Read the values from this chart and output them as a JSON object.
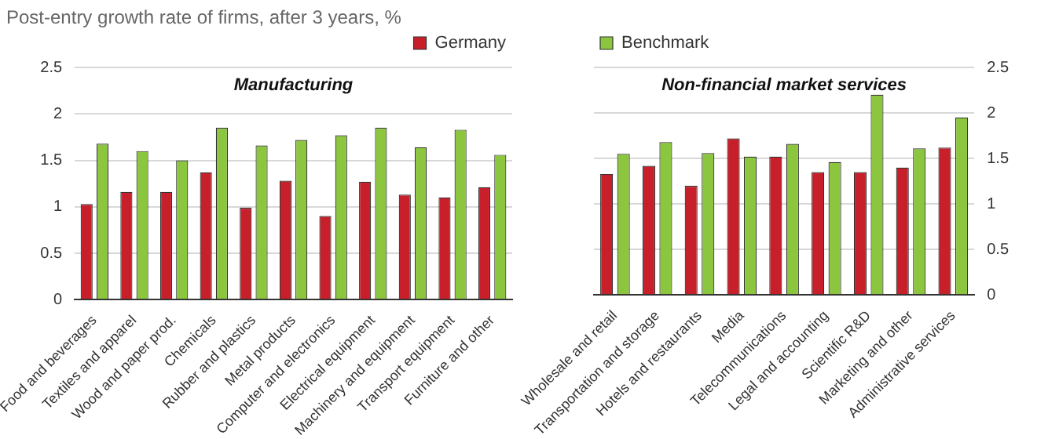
{
  "chart_data": [
    {
      "type": "bar",
      "title": "Post-entry growth rate of firms, after 3 years, %",
      "subtitle": "Manufacturing",
      "categories": [
        "Food and beverages",
        "Textiles and apparel",
        "Wood and paper prod.",
        "Chemicals",
        "Rubber and plastics",
        "Metal products",
        "Computer and electronics",
        "Electrical equipment",
        "Machinery and equipment",
        "Transport equipment",
        "Furniture and other"
      ],
      "series": [
        {
          "name": "Germany",
          "color": "#c8202b",
          "values": [
            1.03,
            1.16,
            1.16,
            1.37,
            0.99,
            1.28,
            0.9,
            1.27,
            1.13,
            1.1,
            1.21
          ]
        },
        {
          "color": "#8cc63e",
          "values": [
            1.68,
            1.6,
            1.5,
            1.85,
            1.66,
            1.72,
            1.77,
            1.85,
            1.64,
            1.83,
            1.56
          ]
        }
      ],
      "ylim": [
        0,
        2.5
      ],
      "yticks": [
        0,
        0.5,
        1,
        1.5,
        2,
        2.5
      ],
      "grid": "y",
      "legend": "top right"
    },
    {
      "type": "bar",
      "subtitle": "Non-financial market services",
      "categories": [
        "Wholesale and retail",
        "Transportation and storage",
        "Hotels and restaurants",
        "Media",
        "Telecommunications",
        "Legal and accounting",
        "Scientific R&D",
        "Marketing and other",
        "Administrative services"
      ],
      "series": [
        {
          "color": "#c8202b",
          "values": [
            1.33,
            1.42,
            1.2,
            1.72,
            1.52,
            1.35,
            1.35,
            1.4,
            1.62
          ]
        },
        {
          "name": "Benchmark",
          "color": "#8cc63e",
          "values": [
            1.55,
            1.68,
            1.56,
            1.52,
            1.66,
            1.46,
            2.2,
            1.61,
            1.95
          ]
        }
      ],
      "ylim": [
        0,
        2.5
      ],
      "yticks": [
        0,
        0.5,
        1,
        1.5,
        2,
        2.5
      ],
      "grid": "y",
      "legend": "top left"
    }
  ]
}
